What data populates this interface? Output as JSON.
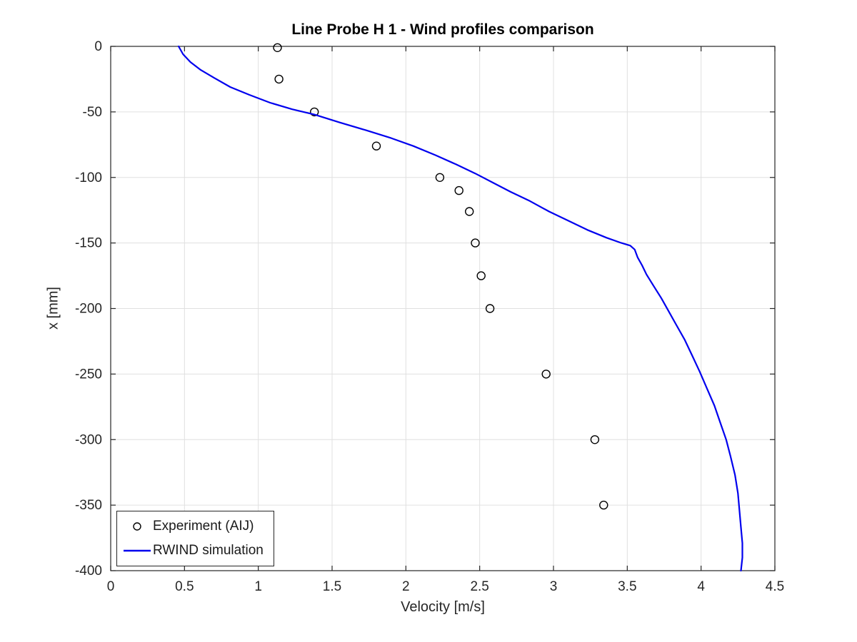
{
  "figure": {
    "title": "Line Probe H 1 - Wind profiles comparison",
    "xlabel": "Velocity [m/s]",
    "ylabel": "x [mm]",
    "background": "#ffffff"
  },
  "legend": {
    "position": "southwest",
    "items": [
      {
        "label": "Experiment (AIJ)",
        "marker": "circle",
        "color": "#000000"
      },
      {
        "label": "RWIND simulation",
        "marker": "line",
        "color": "#0000ee"
      }
    ]
  },
  "chart_data": {
    "type": "line",
    "title": "Line Probe H 1 - Wind profiles comparison",
    "xlabel": "Velocity [m/s]",
    "ylabel": "x [mm]",
    "xlim": [
      0,
      4.5
    ],
    "ylim": [
      -400,
      0
    ],
    "xticks": [
      0,
      0.5,
      1,
      1.5,
      2,
      2.5,
      3,
      3.5,
      4,
      4.5
    ],
    "xtick_labels": [
      "0",
      "0.5",
      "1",
      "1.5",
      "2",
      "2.5",
      "3",
      "3.5",
      "4",
      "4.5"
    ],
    "yticks": [
      0,
      -50,
      -100,
      -150,
      -200,
      -250,
      -300,
      -350,
      -400
    ],
    "ytick_labels": [
      "0",
      "-50",
      "-100",
      "-150",
      "-200",
      "-250",
      "-300",
      "-350",
      "-400"
    ],
    "grid": true,
    "grid_color": "#e0e0e0",
    "axis_color": "#262626",
    "legend_position": "southwest",
    "series": [
      {
        "name": "Experiment (AIJ)",
        "type": "scatter",
        "marker": "circle",
        "color": "#000000",
        "points": [
          [
            1.13,
            -1
          ],
          [
            1.14,
            -25
          ],
          [
            1.38,
            -50
          ],
          [
            1.8,
            -76
          ],
          [
            2.23,
            -100
          ],
          [
            2.36,
            -110
          ],
          [
            2.43,
            -126
          ],
          [
            2.47,
            -150
          ],
          [
            2.51,
            -175
          ],
          [
            2.57,
            -200
          ],
          [
            2.95,
            -250
          ],
          [
            3.28,
            -300
          ],
          [
            3.34,
            -350
          ]
        ]
      },
      {
        "name": "RWIND simulation",
        "type": "line",
        "color": "#0000ee",
        "points": [
          [
            0.46,
            0
          ],
          [
            0.49,
            -6
          ],
          [
            0.54,
            -12
          ],
          [
            0.61,
            -18
          ],
          [
            0.7,
            -24
          ],
          [
            0.81,
            -31
          ],
          [
            0.94,
            -37
          ],
          [
            1.08,
            -43
          ],
          [
            1.23,
            -48
          ],
          [
            1.38,
            -52
          ],
          [
            1.55,
            -58
          ],
          [
            1.73,
            -64
          ],
          [
            1.9,
            -70
          ],
          [
            2.05,
            -76
          ],
          [
            2.2,
            -83
          ],
          [
            2.34,
            -90
          ],
          [
            2.47,
            -97
          ],
          [
            2.59,
            -104
          ],
          [
            2.71,
            -111
          ],
          [
            2.84,
            -118
          ],
          [
            2.97,
            -126
          ],
          [
            3.1,
            -133
          ],
          [
            3.23,
            -140
          ],
          [
            3.36,
            -146
          ],
          [
            3.46,
            -150
          ],
          [
            3.52,
            -152
          ],
          [
            3.55,
            -155
          ],
          [
            3.57,
            -161
          ],
          [
            3.6,
            -167
          ],
          [
            3.63,
            -174
          ],
          [
            3.68,
            -183
          ],
          [
            3.73,
            -192
          ],
          [
            3.78,
            -202
          ],
          [
            3.83,
            -212
          ],
          [
            3.89,
            -224
          ],
          [
            3.94,
            -236
          ],
          [
            3.99,
            -248
          ],
          [
            4.04,
            -261
          ],
          [
            4.09,
            -274
          ],
          [
            4.13,
            -287
          ],
          [
            4.17,
            -300
          ],
          [
            4.2,
            -313
          ],
          [
            4.23,
            -327
          ],
          [
            4.25,
            -341
          ],
          [
            4.26,
            -354
          ],
          [
            4.27,
            -367
          ],
          [
            4.28,
            -379
          ],
          [
            4.28,
            -390
          ],
          [
            4.27,
            -400
          ]
        ]
      }
    ]
  }
}
